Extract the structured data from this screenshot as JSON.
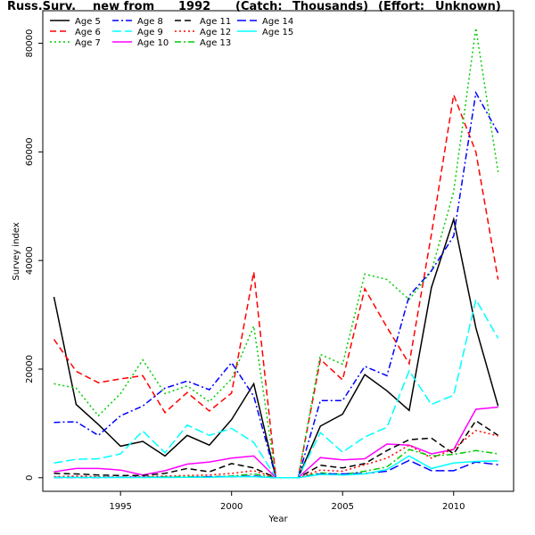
{
  "chart_data": {
    "type": "line",
    "title_parts": [
      "Russ.Surv.",
      "new from",
      "1992",
      "(Catch:",
      "Thousands)",
      "(Effort:",
      "Unknown)"
    ],
    "xlabel": "Year",
    "ylabel": "Survey index",
    "xlim": [
      1991.5,
      2012.7
    ],
    "ylim": [
      -2500,
      86000
    ],
    "x_ticks": [
      1995,
      2000,
      2005,
      2010
    ],
    "y_ticks": [
      0,
      20000,
      40000,
      60000,
      80000
    ],
    "legend_position": "top-left",
    "x": [
      1992,
      1993,
      1994,
      1995,
      1996,
      1997,
      1998,
      1999,
      2000,
      2001,
      2002,
      2003,
      2004,
      2005,
      2006,
      2007,
      2008,
      2009,
      2010,
      2011,
      2012
    ],
    "series": [
      {
        "name": "Age 5",
        "color": "#000000",
        "dash": "",
        "values": [
          33300,
          13500,
          9800,
          5800,
          6700,
          4000,
          7800,
          6000,
          10700,
          17300,
          0,
          0,
          9500,
          11700,
          19000,
          16000,
          12400,
          35000,
          47600,
          27600,
          13200
        ]
      },
      {
        "name": "Age 6",
        "color": "#ff0000",
        "dash": "7,4",
        "values": [
          25500,
          19600,
          17500,
          18200,
          18800,
          12000,
          15700,
          12300,
          15600,
          37900,
          0,
          0,
          21800,
          18000,
          34800,
          27700,
          21000,
          44800,
          70500,
          60000,
          36500
        ]
      },
      {
        "name": "Age 7",
        "color": "#00cc00",
        "dash": "2,3",
        "values": [
          17300,
          16500,
          11400,
          15500,
          21700,
          15500,
          16900,
          14000,
          18200,
          27900,
          0,
          0,
          22700,
          20900,
          37500,
          36500,
          32800,
          38000,
          52700,
          82800,
          56300
        ]
      },
      {
        "name": "Age 8",
        "color": "#0000ff",
        "dash": "7,3,2,3",
        "values": [
          10200,
          10300,
          7800,
          11400,
          13200,
          16500,
          17800,
          16200,
          21200,
          15000,
          0,
          0,
          14200,
          14200,
          20500,
          18800,
          33500,
          38100,
          44500,
          70900,
          63500
        ]
      },
      {
        "name": "Age 9",
        "color": "#00ffff",
        "dash": "10,4",
        "values": [
          2700,
          3400,
          3500,
          4400,
          8600,
          4600,
          9700,
          7800,
          9100,
          6500,
          0,
          0,
          8300,
          4700,
          7500,
          9300,
          19700,
          13500,
          15200,
          32800,
          25700
        ]
      },
      {
        "name": "Age 10",
        "color": "#ff00ff",
        "dash": "",
        "values": [
          1100,
          1700,
          1700,
          1400,
          500,
          1300,
          2500,
          2900,
          3600,
          4000,
          0,
          0,
          3700,
          3300,
          3500,
          6200,
          6000,
          4400,
          5200,
          12600,
          13000
        ]
      },
      {
        "name": "Age 11",
        "color": "#000000",
        "dash": "7,4",
        "values": [
          800,
          700,
          500,
          400,
          400,
          800,
          1700,
          1100,
          2600,
          1800,
          0,
          0,
          2300,
          1800,
          2600,
          5000,
          7000,
          7300,
          4400,
          10500,
          7800
        ]
      },
      {
        "name": "Age 12",
        "color": "#ff0000",
        "dash": "2,3",
        "values": [
          200,
          300,
          200,
          100,
          200,
          300,
          400,
          500,
          800,
          1300,
          0,
          0,
          1400,
          1200,
          2400,
          3600,
          6000,
          3600,
          5300,
          8700,
          7700
        ]
      },
      {
        "name": "Age 13",
        "color": "#00cc00",
        "dash": "7,3,2,3",
        "values": [
          100,
          100,
          100,
          100,
          100,
          200,
          200,
          200,
          300,
          700,
          0,
          0,
          900,
          600,
          1200,
          2000,
          5200,
          4000,
          4300,
          5000,
          4400
        ]
      },
      {
        "name": "Age 14",
        "color": "#0000ff",
        "dash": "10,4",
        "values": [
          50,
          50,
          50,
          100,
          100,
          100,
          100,
          200,
          200,
          300,
          0,
          0,
          700,
          700,
          800,
          1200,
          3200,
          1300,
          1300,
          2900,
          2400
        ]
      },
      {
        "name": "Age 15",
        "color": "#00ffff",
        "dash": "",
        "values": [
          50,
          50,
          50,
          50,
          50,
          50,
          100,
          100,
          200,
          200,
          0,
          0,
          600,
          500,
          700,
          1500,
          4000,
          1700,
          2700,
          3000,
          3100
        ]
      }
    ]
  }
}
